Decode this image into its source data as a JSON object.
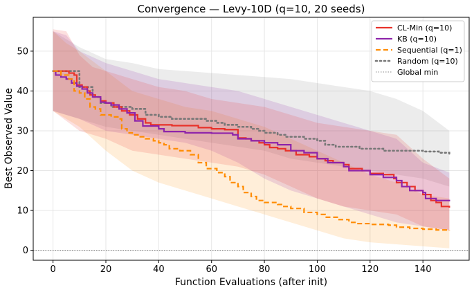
{
  "chart_data": {
    "type": "line",
    "title": "Convergence — Levy-10D (q=10, 20 seeds)",
    "xlabel": "Function Evaluations (after init)",
    "ylabel": "Best Observed Value",
    "xlim": [
      -7.5,
      157.5
    ],
    "ylim": [
      -2.5,
      58.5
    ],
    "xticks": [
      0,
      20,
      40,
      60,
      80,
      100,
      120,
      140
    ],
    "yticks": [
      0,
      10,
      20,
      30,
      40,
      50
    ],
    "grid": true,
    "legend_position": "top-right",
    "reference_line": {
      "name": "Global min",
      "y": 0,
      "color": "#888888"
    },
    "series": [
      {
        "name": "CL-Min (q=10)",
        "color": "#e8322a",
        "style": "solid",
        "points": [
          [
            0,
            45
          ],
          [
            3,
            45
          ],
          [
            6,
            44.5
          ],
          [
            8,
            44
          ],
          [
            9,
            41.5
          ],
          [
            11,
            41
          ],
          [
            13,
            40
          ],
          [
            14,
            39
          ],
          [
            16,
            38.5
          ],
          [
            18,
            37.5
          ],
          [
            20,
            37
          ],
          [
            23,
            36
          ],
          [
            26,
            35
          ],
          [
            29,
            34
          ],
          [
            32,
            33
          ],
          [
            35,
            32
          ],
          [
            37,
            31.5
          ],
          [
            45,
            31.3
          ],
          [
            55,
            30.8
          ],
          [
            60,
            30.5
          ],
          [
            65,
            30.3
          ],
          [
            70,
            28.2
          ],
          [
            73,
            28
          ],
          [
            75,
            27.5
          ],
          [
            78,
            27
          ],
          [
            80,
            26.5
          ],
          [
            82,
            25.8
          ],
          [
            85,
            25.5
          ],
          [
            88,
            25
          ],
          [
            92,
            24
          ],
          [
            97,
            23.5
          ],
          [
            100,
            23
          ],
          [
            103,
            22.5
          ],
          [
            106,
            22
          ],
          [
            110,
            21.5
          ],
          [
            112,
            20.5
          ],
          [
            117,
            20
          ],
          [
            120,
            19.3
          ],
          [
            125,
            19
          ],
          [
            129,
            18
          ],
          [
            130,
            17
          ],
          [
            134,
            16
          ],
          [
            137,
            15
          ],
          [
            140,
            14
          ],
          [
            143,
            12.5
          ],
          [
            145,
            12
          ],
          [
            147,
            11
          ],
          [
            150,
            10.7
          ]
        ],
        "lower": [
          [
            0,
            35
          ],
          [
            10,
            30
          ],
          [
            20,
            28
          ],
          [
            30,
            25
          ],
          [
            40,
            24
          ],
          [
            50,
            23
          ],
          [
            60,
            22
          ],
          [
            70,
            21
          ],
          [
            80,
            19
          ],
          [
            90,
            16
          ],
          [
            100,
            13
          ],
          [
            110,
            11
          ],
          [
            120,
            10
          ],
          [
            130,
            9
          ],
          [
            140,
            6
          ],
          [
            150,
            5
          ]
        ],
        "upper": [
          [
            0,
            55.5
          ],
          [
            5,
            55
          ],
          [
            10,
            49
          ],
          [
            15,
            46
          ],
          [
            20,
            45
          ],
          [
            30,
            43
          ],
          [
            40,
            41
          ],
          [
            50,
            40
          ],
          [
            60,
            38
          ],
          [
            70,
            37
          ],
          [
            80,
            36
          ],
          [
            90,
            34
          ],
          [
            100,
            32
          ],
          [
            110,
            31
          ],
          [
            120,
            30
          ],
          [
            130,
            29
          ],
          [
            140,
            23
          ],
          [
            150,
            18
          ]
        ]
      },
      {
        "name": "KB (q=10)",
        "color": "#8e24aa",
        "style": "solid",
        "points": [
          [
            0,
            45
          ],
          [
            1,
            44
          ],
          [
            3,
            43.5
          ],
          [
            5,
            43
          ],
          [
            7,
            42
          ],
          [
            9,
            41.2
          ],
          [
            11,
            40.5
          ],
          [
            13,
            39.5
          ],
          [
            15,
            38.5
          ],
          [
            18,
            37.2
          ],
          [
            20,
            37
          ],
          [
            22,
            36.5
          ],
          [
            25,
            35.5
          ],
          [
            28,
            34.5
          ],
          [
            31,
            32.5
          ],
          [
            34,
            31.2
          ],
          [
            40,
            30.5
          ],
          [
            42,
            29.8
          ],
          [
            50,
            29.5
          ],
          [
            60,
            29.4
          ],
          [
            68,
            29
          ],
          [
            70,
            28
          ],
          [
            75,
            27.5
          ],
          [
            80,
            27
          ],
          [
            85,
            26.5
          ],
          [
            90,
            25
          ],
          [
            95,
            24.5
          ],
          [
            100,
            23
          ],
          [
            104,
            22
          ],
          [
            110,
            21
          ],
          [
            112,
            20
          ],
          [
            120,
            19
          ],
          [
            125,
            18.3
          ],
          [
            130,
            17.5
          ],
          [
            132,
            16
          ],
          [
            135,
            15
          ],
          [
            140,
            14.5
          ],
          [
            141,
            13
          ],
          [
            145,
            12.5
          ],
          [
            150,
            12.3
          ]
        ],
        "lower": [
          [
            0,
            35
          ],
          [
            10,
            33
          ],
          [
            20,
            30
          ],
          [
            30,
            29
          ],
          [
            40,
            28
          ],
          [
            50,
            27
          ],
          [
            60,
            25
          ],
          [
            70,
            22
          ],
          [
            80,
            18
          ],
          [
            90,
            15
          ],
          [
            100,
            13
          ],
          [
            110,
            11
          ],
          [
            120,
            9
          ],
          [
            130,
            7
          ],
          [
            140,
            6
          ],
          [
            150,
            5
          ]
        ],
        "upper": [
          [
            0,
            55
          ],
          [
            5,
            54
          ],
          [
            10,
            50
          ],
          [
            20,
            47
          ],
          [
            30,
            45
          ],
          [
            40,
            43
          ],
          [
            50,
            42
          ],
          [
            60,
            41
          ],
          [
            70,
            40
          ],
          [
            80,
            38
          ],
          [
            90,
            36
          ],
          [
            100,
            34
          ],
          [
            110,
            32
          ],
          [
            120,
            30
          ],
          [
            130,
            28
          ],
          [
            140,
            22
          ],
          [
            150,
            19.5
          ]
        ]
      },
      {
        "name": "Sequential (q=1)",
        "color": "#ff8c00",
        "style": "dashed",
        "points": [
          [
            0,
            45
          ],
          [
            3,
            44
          ],
          [
            6,
            43
          ],
          [
            8,
            40
          ],
          [
            10,
            39.5
          ],
          [
            12,
            38
          ],
          [
            14,
            36
          ],
          [
            16,
            35.5
          ],
          [
            18,
            34
          ],
          [
            20,
            34
          ],
          [
            22,
            33.5
          ],
          [
            25,
            33
          ],
          [
            26,
            30.5
          ],
          [
            28,
            29.5
          ],
          [
            30,
            29
          ],
          [
            33,
            28.5
          ],
          [
            35,
            28
          ],
          [
            38,
            27.5
          ],
          [
            40,
            27
          ],
          [
            42,
            26.5
          ],
          [
            44,
            25.5
          ],
          [
            48,
            25
          ],
          [
            52,
            24
          ],
          [
            55,
            22
          ],
          [
            58,
            20.5
          ],
          [
            62,
            19.5
          ],
          [
            65,
            18.5
          ],
          [
            67,
            17
          ],
          [
            70,
            16
          ],
          [
            72,
            14.5
          ],
          [
            75,
            13.5
          ],
          [
            77,
            12.5
          ],
          [
            80,
            12
          ],
          [
            85,
            11.5
          ],
          [
            87,
            11
          ],
          [
            90,
            10.5
          ],
          [
            95,
            9.5
          ],
          [
            100,
            9
          ],
          [
            103,
            8.3
          ],
          [
            108,
            7.7
          ],
          [
            112,
            7
          ],
          [
            115,
            6.7
          ],
          [
            120,
            6.5
          ],
          [
            127,
            6.3
          ],
          [
            130,
            5.8
          ],
          [
            135,
            5.5
          ],
          [
            140,
            5.3
          ],
          [
            145,
            5.1
          ],
          [
            150,
            4.9
          ]
        ],
        "lower": [
          [
            0,
            35
          ],
          [
            10,
            31
          ],
          [
            20,
            25
          ],
          [
            30,
            20
          ],
          [
            40,
            17
          ],
          [
            50,
            15
          ],
          [
            60,
            13
          ],
          [
            70,
            11
          ],
          [
            80,
            9
          ],
          [
            90,
            7
          ],
          [
            100,
            5
          ],
          [
            110,
            3
          ],
          [
            120,
            2
          ],
          [
            130,
            1.5
          ],
          [
            140,
            1
          ],
          [
            150,
            0.5
          ]
        ],
        "upper": [
          [
            0,
            55
          ],
          [
            5,
            52
          ],
          [
            10,
            50
          ],
          [
            20,
            45
          ],
          [
            30,
            40
          ],
          [
            40,
            38
          ],
          [
            50,
            36
          ],
          [
            60,
            35
          ],
          [
            70,
            33
          ],
          [
            80,
            31
          ],
          [
            90,
            28
          ],
          [
            100,
            25
          ],
          [
            110,
            22
          ],
          [
            120,
            19
          ],
          [
            130,
            17
          ],
          [
            140,
            14
          ],
          [
            150,
            13
          ]
        ]
      },
      {
        "name": "Random (q=10)",
        "color": "#777777",
        "style": "dotted",
        "points": [
          [
            0,
            45
          ],
          [
            10,
            41
          ],
          [
            15,
            38.5
          ],
          [
            18,
            37
          ],
          [
            22,
            36
          ],
          [
            30,
            35.5
          ],
          [
            35,
            34
          ],
          [
            40,
            33.5
          ],
          [
            45,
            33
          ],
          [
            52,
            33
          ],
          [
            58,
            32.5
          ],
          [
            62,
            32
          ],
          [
            65,
            31.5
          ],
          [
            70,
            31
          ],
          [
            75,
            30.5
          ],
          [
            78,
            30
          ],
          [
            80,
            29.5
          ],
          [
            85,
            29
          ],
          [
            88,
            28.5
          ],
          [
            95,
            28
          ],
          [
            100,
            27.5
          ],
          [
            103,
            26.5
          ],
          [
            107,
            26
          ],
          [
            113,
            26
          ],
          [
            116,
            25.5
          ],
          [
            125,
            25
          ],
          [
            140,
            24.8
          ],
          [
            146,
            24.5
          ],
          [
            150,
            24
          ]
        ],
        "lower": [
          [
            0,
            35
          ],
          [
            10,
            33
          ],
          [
            20,
            31
          ],
          [
            30,
            30
          ],
          [
            40,
            29
          ],
          [
            50,
            28
          ],
          [
            60,
            27
          ],
          [
            70,
            26
          ],
          [
            80,
            25
          ],
          [
            90,
            23
          ],
          [
            100,
            22
          ],
          [
            110,
            21
          ],
          [
            120,
            20
          ],
          [
            130,
            19
          ],
          [
            140,
            18
          ],
          [
            150,
            16
          ]
        ],
        "upper": [
          [
            0,
            55
          ],
          [
            10,
            51
          ],
          [
            20,
            48
          ],
          [
            30,
            47
          ],
          [
            40,
            45.5
          ],
          [
            50,
            45
          ],
          [
            60,
            44.5
          ],
          [
            70,
            44
          ],
          [
            80,
            43.5
          ],
          [
            90,
            43
          ],
          [
            100,
            42
          ],
          [
            110,
            41
          ],
          [
            120,
            40
          ],
          [
            130,
            38
          ],
          [
            140,
            35
          ],
          [
            150,
            30
          ]
        ]
      }
    ]
  }
}
